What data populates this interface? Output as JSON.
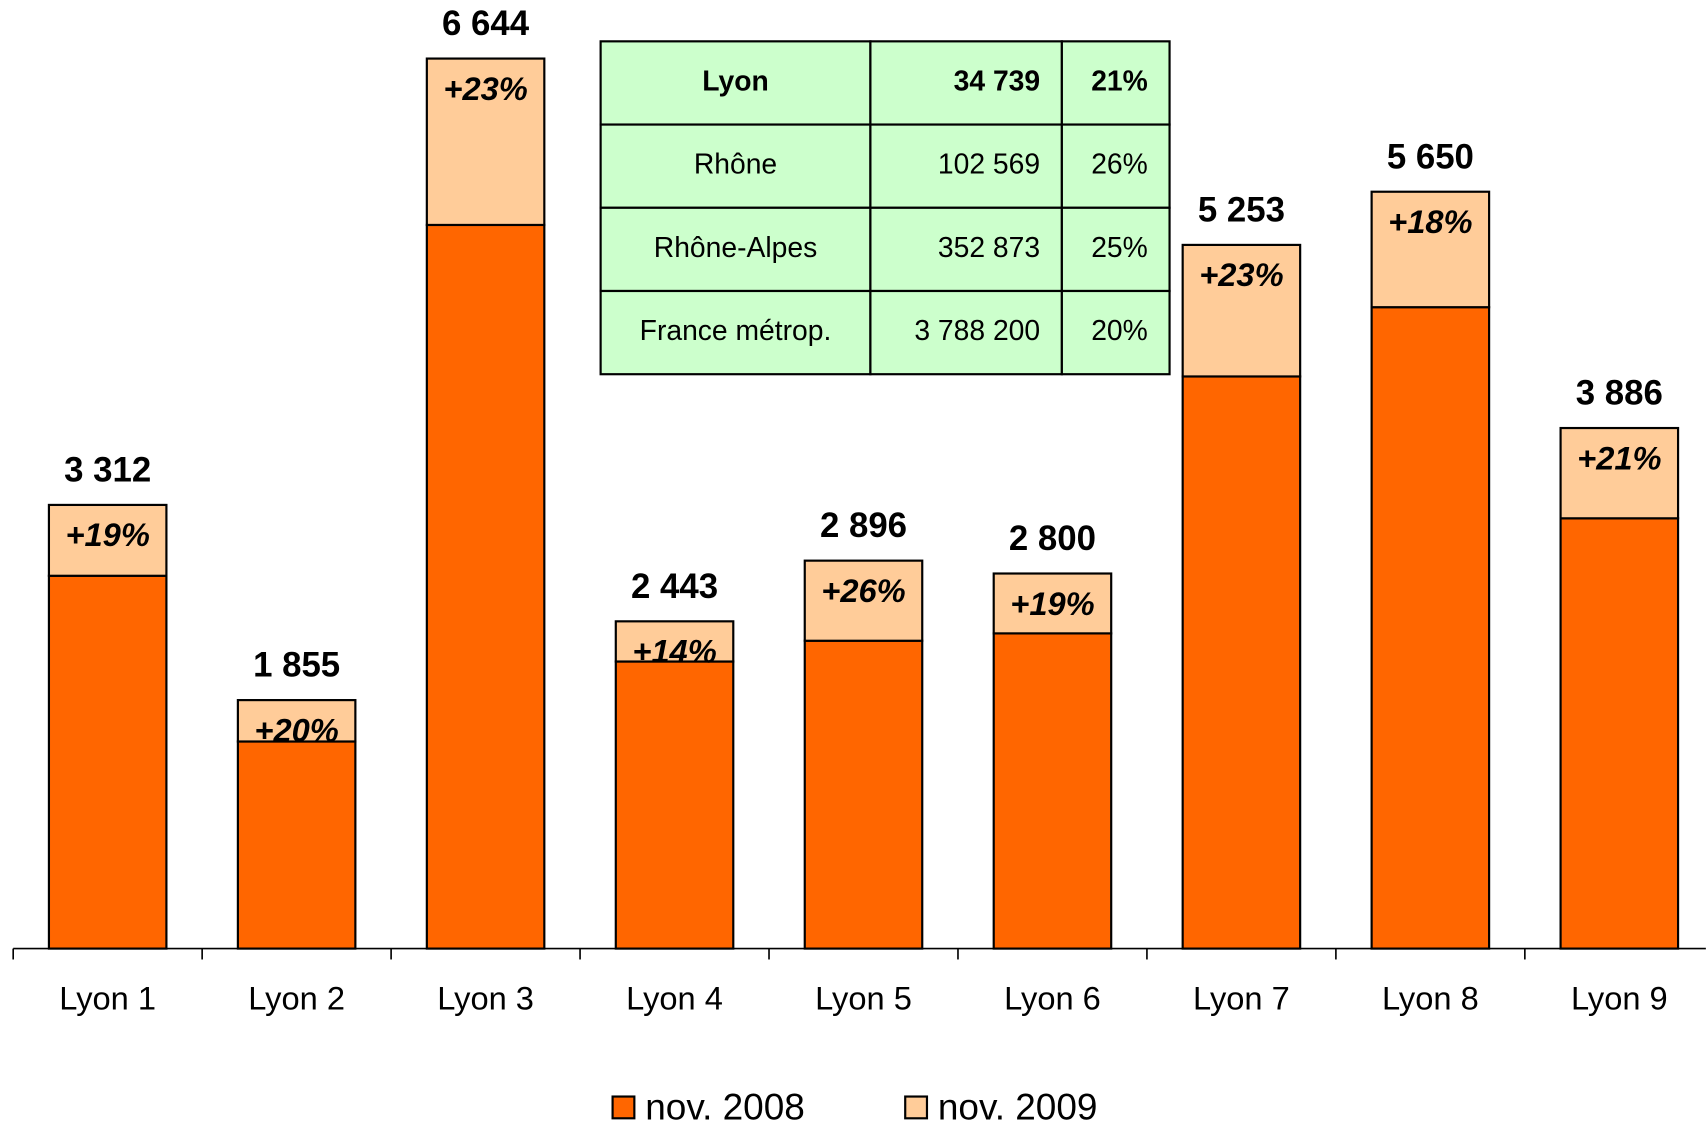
{
  "chart_data": {
    "type": "stacked_bar",
    "categories": [
      "Lyon 1",
      "Lyon 2",
      "Lyon 3",
      "Lyon 4",
      "Lyon 5",
      "Lyon 6",
      "Lyon 7",
      "Lyon 8",
      "Lyon 9"
    ],
    "series": [
      {
        "name": "nov. 2008",
        "color": "#ff6600",
        "values": [
          2783,
          1546,
          5402,
          2143,
          2298,
          2353,
          4271,
          4788,
          3212
        ]
      },
      {
        "name": "nov. 2009",
        "color": "#ffcc99",
        "values": [
          529,
          309,
          1242,
          300,
          598,
          447,
          982,
          862,
          674
        ]
      }
    ],
    "totals": [
      3312,
      1855,
      6644,
      2443,
      2896,
      2800,
      5253,
      5650,
      3886
    ],
    "total_labels": [
      "3 312",
      "1 855",
      "6 644",
      "2 443",
      "2 896",
      "2 800",
      "5 253",
      "5 650",
      "3 886"
    ],
    "change_labels": [
      "+19%",
      "+20%",
      "+23%",
      "+14%",
      "+26%",
      "+19%",
      "+23%",
      "+18%",
      "+21%"
    ],
    "ylim": [
      0,
      7000
    ],
    "legend": "bottom"
  },
  "table": {
    "rows": [
      [
        "Lyon",
        "34 739",
        "21%"
      ],
      [
        "Rhône",
        "102 569",
        "26%"
      ],
      [
        "Rhône-Alpes",
        "352 873",
        "25%"
      ],
      [
        "France métrop.",
        "3 788 200",
        "20%"
      ]
    ]
  }
}
